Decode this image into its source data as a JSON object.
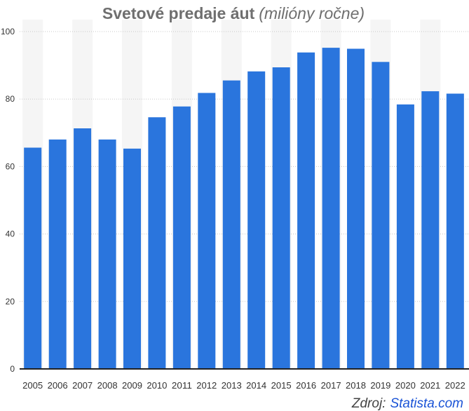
{
  "colors": {
    "bar": "#2a75dd",
    "column_band": "#f5f5f5",
    "title": "#6f6f6f",
    "source_link": "#1a53d6"
  },
  "chart_data": {
    "type": "bar",
    "title": "Svetové predaje áut",
    "subtitle": "(milióny ročne)",
    "categories": [
      "2005",
      "2006",
      "2007",
      "2008",
      "2009",
      "2010",
      "2011",
      "2012",
      "2013",
      "2014",
      "2015",
      "2016",
      "2017",
      "2018",
      "2019",
      "2020",
      "2021",
      "2022"
    ],
    "values": [
      65.6,
      68.0,
      71.3,
      68.0,
      65.3,
      74.6,
      77.8,
      81.8,
      85.5,
      88.2,
      89.4,
      93.8,
      95.2,
      94.9,
      91.0,
      78.4,
      82.3,
      81.6
    ],
    "yticks": [
      "0",
      "20",
      "40",
      "60",
      "80",
      "100"
    ],
    "ylim": [
      0,
      100
    ],
    "grid": true,
    "legend": "none",
    "source": {
      "prefix": "Zdroj:",
      "name": "Statista.com"
    }
  }
}
